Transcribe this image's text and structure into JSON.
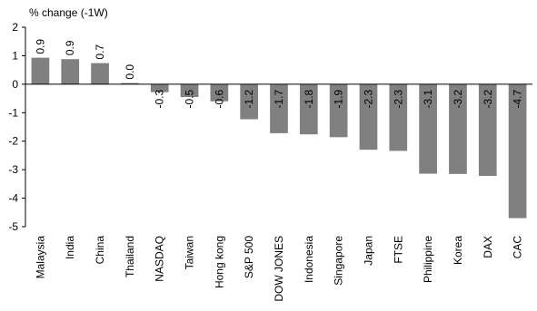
{
  "chart_data": {
    "type": "bar",
    "ylabel": "% change (-1W)",
    "ylim": [
      -5,
      2
    ],
    "yticks": [
      2,
      1,
      0,
      -1,
      -2,
      -3,
      -4,
      -5
    ],
    "grid": false,
    "legend": "none",
    "bar_color": "#808080",
    "categories": [
      "Malaysia",
      "India",
      "China",
      "Thailand",
      "NASDAQ",
      "Taiwan",
      "Hong kong",
      "S&P 500",
      "DOW JONES",
      "Indonesia",
      "Singapore",
      "Japan",
      "FTSE",
      "Philippine",
      "Korea",
      "DAX",
      "CAC"
    ],
    "values": [
      0.93,
      0.88,
      0.74,
      0.04,
      -0.28,
      -0.45,
      -0.6,
      -1.23,
      -1.72,
      -1.76,
      -1.86,
      -2.3,
      -2.34,
      -3.14,
      -3.15,
      -3.22,
      -4.7
    ],
    "data_labels": [
      "0.9",
      "0.9",
      "0.7",
      "0.0",
      "-0.3",
      "-0.5",
      "-0.6",
      "-1.2",
      "-1.7",
      "-1.8",
      "-1.9",
      "-2.3",
      "-2.3",
      "-3.1",
      "-3.2",
      "-3.2",
      "-4.7"
    ]
  }
}
